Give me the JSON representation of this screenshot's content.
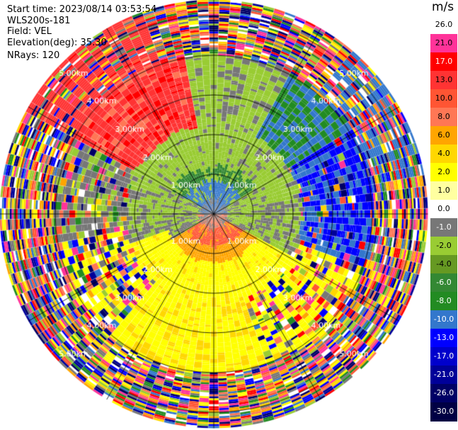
{
  "header": {
    "start_time": "Start time: 2023/08/14 03:53:54",
    "instrument": "WLS200s-181",
    "field": "Field: VEL",
    "elevation": "Elevation(deg): 35.30",
    "nrays": "NRays: 120"
  },
  "chart_data": {
    "type": "heatmap",
    "projection": "polar-ppi",
    "field": "VEL",
    "units": "m/s",
    "n_rays": 120,
    "range_rings_km": [
      1.0,
      2.0,
      3.0,
      4.0,
      5.0
    ],
    "ring_labels": [
      "1.00km",
      "2.00km",
      "3.00km",
      "4.00km",
      "5.00km"
    ],
    "max_range_km": 5.4,
    "radial_lines_deg": [
      0,
      30,
      60,
      90,
      120,
      150,
      180,
      210,
      240,
      270,
      300,
      330
    ],
    "colorbar": {
      "title": "m/s",
      "ticks": [
        "26.0",
        "21.0",
        "17.0",
        "13.0",
        "10.0",
        "8.0",
        "6.0",
        "4.0",
        "2.0",
        "1.0",
        "0.0",
        "-1.0",
        "-2.0",
        "-4.0",
        "-6.0",
        "-8.0",
        "-10.0",
        "-13.0",
        "-17.0",
        "-21.0",
        "-26.0",
        "-30.0"
      ],
      "colors": [
        "#ffffff",
        "#ff3399",
        "#ff0000",
        "#ff3333",
        "#ff5533",
        "#ff7755",
        "#ffa500",
        "#ffd700",
        "#ffff00",
        "#ffffa0",
        "#ffffff",
        "#777777",
        "#99cc33",
        "#669922",
        "#338833",
        "#228b22",
        "#3377cc",
        "#0000ff",
        "#0000cc",
        "#000099",
        "#000066",
        "#000044"
      ]
    },
    "approx_pattern": {
      "near_field_0_1km": "blue/green (negative) to north, orange/red (positive) to south",
      "1_2km": "green/olive north half, yellow/orange south half",
      "2_4km": "north sector green, NW sector red/orange, east sector blue, south sector yellow",
      "beyond_4km": "noisy mixed colors across all sectors"
    }
  }
}
